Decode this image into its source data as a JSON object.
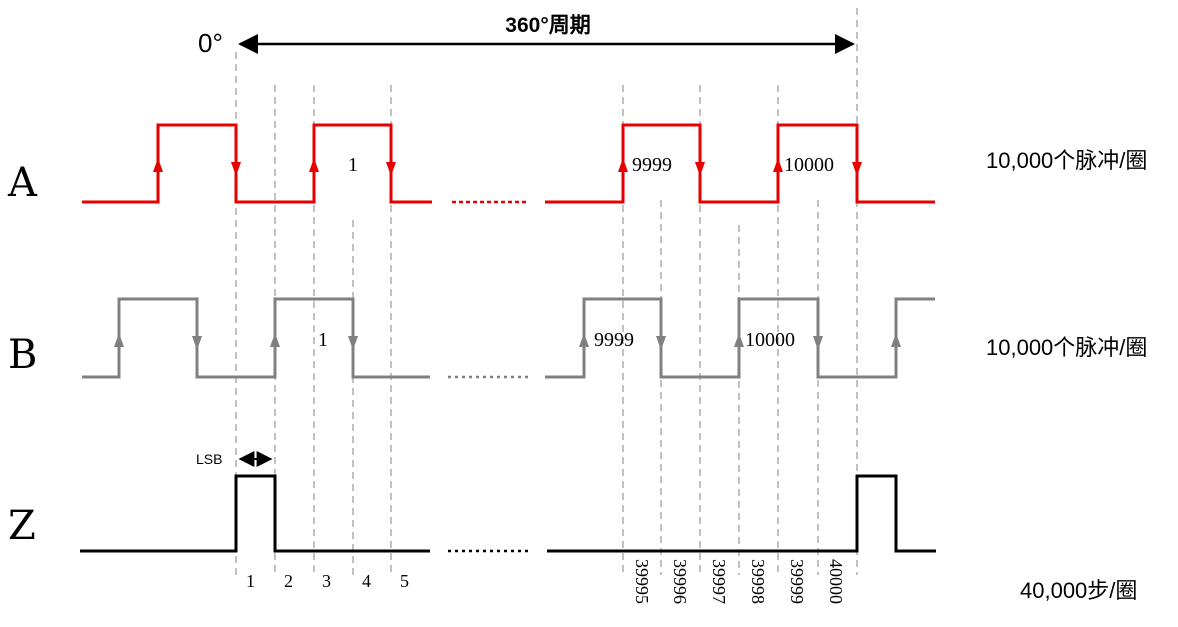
{
  "header": {
    "zero_label": "0°",
    "period_label": "360°周期"
  },
  "channels": [
    {
      "name": "A",
      "rate_label": "10,000个脉冲/圈",
      "pulse_labels": [
        "1",
        "9999",
        "10000"
      ],
      "color": "#e60000"
    },
    {
      "name": "B",
      "rate_label": "10,000个脉冲/圈",
      "pulse_labels": [
        "1",
        "9999",
        "10000"
      ],
      "color": "#808080"
    },
    {
      "name": "Z",
      "rate_label": "40,000步/圈",
      "color": "#000000"
    }
  ],
  "lsb_label": "LSB",
  "steps_start": [
    "1",
    "2",
    "3",
    "4",
    "5"
  ],
  "steps_end": [
    "39995",
    "39996",
    "39997",
    "39998",
    "39999",
    "40000"
  ]
}
